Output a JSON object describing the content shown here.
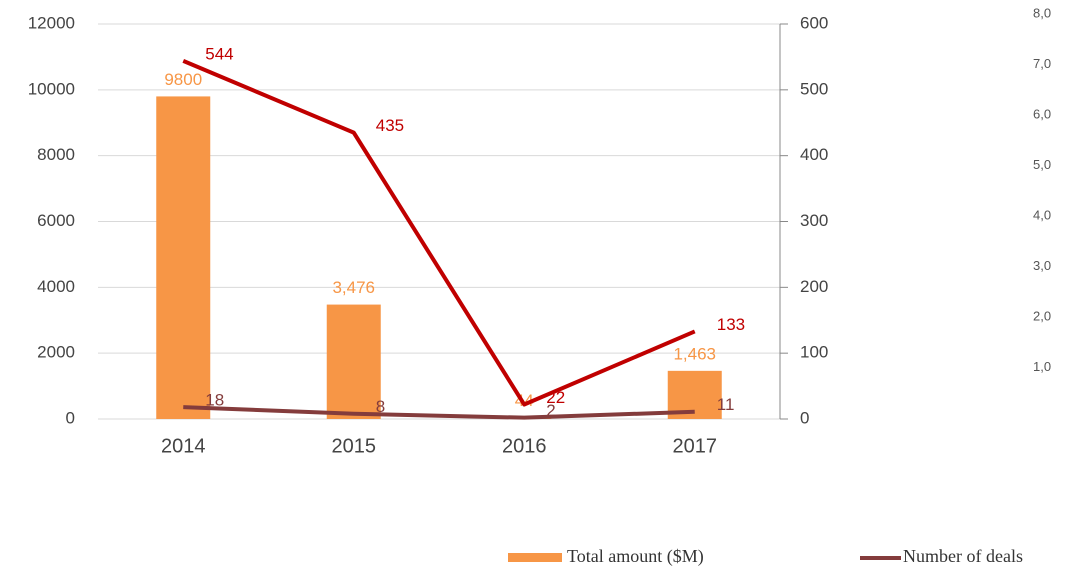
{
  "chart_data": {
    "type": "bar_line",
    "categories": [
      "2014",
      "2015",
      "2016",
      "2017"
    ],
    "values": [
      9800,
      3476,
      44,
      1463
    ],
    "value_labels": [
      "9800",
      "3,476",
      "44",
      "1,463"
    ],
    "bar_name": "Total amount ($M)",
    "color": "#f79646",
    "series": [
      {
        "color": "#c00000",
        "axis": "y2",
        "values": [
          544,
          435,
          22,
          133
        ]
      },
      {
        "name": "Number of deals",
        "color": "#843c3c",
        "axis": "y2",
        "values": [
          18,
          8,
          2,
          11
        ]
      }
    ],
    "ylim": [
      0,
      12000
    ],
    "yticks": [
      0,
      2000,
      4000,
      6000,
      8000,
      10000,
      12000
    ],
    "y2lim": [
      0,
      600
    ],
    "y2ticks": [
      0,
      100,
      200,
      300,
      400,
      500,
      600
    ],
    "grid": true
  },
  "side_labels": [
    "8,0",
    "7,0",
    "6,0",
    "5,0",
    "4,0",
    "3,0",
    "2,0",
    "1,0"
  ]
}
